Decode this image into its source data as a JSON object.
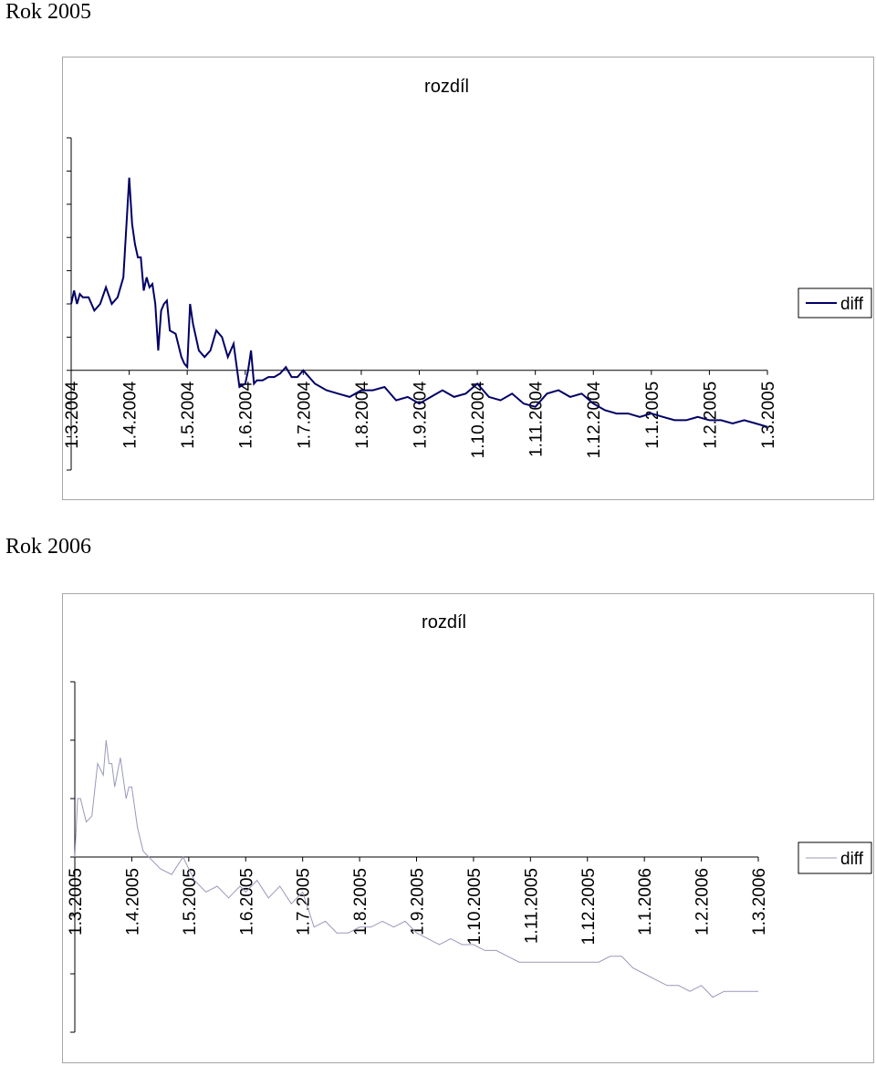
{
  "sections": [
    {
      "heading": "Rok 2005"
    },
    {
      "heading": "Rok 2006"
    }
  ],
  "chart_data": [
    {
      "type": "line",
      "title": "rozdíl",
      "xlabel": "",
      "ylabel": "",
      "ylim": [
        -15,
        35
      ],
      "yticks": [
        -15,
        -10,
        -5,
        0,
        5,
        10,
        15,
        20,
        25,
        30,
        35
      ],
      "categories": [
        "1.3.2004",
        "1.4.2004",
        "1.5.2004",
        "1.6.2004",
        "1.7.2004",
        "1.8.2004",
        "1.9.2004",
        "1.10.2004",
        "1.11.2004",
        "1.12.2004",
        "1.1.2005",
        "1.2.2005",
        "1.3.2005"
      ],
      "legend": {
        "position": "right"
      },
      "color": "#000066",
      "series": [
        {
          "name": "diff",
          "x": [
            0,
            0.05,
            0.1,
            0.15,
            0.2,
            0.3,
            0.4,
            0.5,
            0.6,
            0.7,
            0.8,
            0.9,
            1.0,
            1.05,
            1.1,
            1.15,
            1.2,
            1.25,
            1.3,
            1.35,
            1.4,
            1.45,
            1.5,
            1.55,
            1.6,
            1.65,
            1.7,
            1.8,
            1.9,
            1.95,
            2.0,
            2.05,
            2.1,
            2.15,
            2.2,
            2.3,
            2.4,
            2.5,
            2.6,
            2.7,
            2.8,
            2.9,
            3.0,
            3.05,
            3.1,
            3.15,
            3.2,
            3.3,
            3.4,
            3.5,
            3.6,
            3.7,
            3.8,
            3.9,
            4.0,
            4.2,
            4.4,
            4.6,
            4.8,
            5.0,
            5.2,
            5.4,
            5.6,
            5.8,
            6.0,
            6.2,
            6.4,
            6.6,
            6.8,
            7.0,
            7.2,
            7.4,
            7.6,
            7.8,
            8.0,
            8.2,
            8.4,
            8.6,
            8.8,
            9.0,
            9.2,
            9.4,
            9.6,
            9.8,
            10.0,
            10.2,
            10.4,
            10.6,
            10.8,
            11.0,
            11.2,
            11.4,
            11.6,
            11.8,
            12.0
          ],
          "y": [
            10,
            12,
            10,
            11.5,
            11,
            11,
            9,
            10,
            12.5,
            10,
            11,
            14,
            29,
            22,
            19,
            17,
            17,
            12,
            14,
            12.5,
            13,
            10,
            3,
            9,
            10,
            10.5,
            6,
            5.5,
            2,
            1,
            0.5,
            10,
            7,
            5,
            3,
            2,
            3,
            6,
            5,
            2,
            4,
            -2.5,
            -2,
            0,
            3,
            -2,
            -1.5,
            -1.5,
            -1,
            -1,
            -0.5,
            0.5,
            -1,
            -1,
            0,
            -2,
            -3,
            -3.5,
            -4,
            -3,
            -3,
            -2.5,
            -4.5,
            -4,
            -5,
            -4,
            -3,
            -4,
            -3.5,
            -2,
            -4,
            -4.5,
            -3.5,
            -5,
            -5.5,
            -3.5,
            -3,
            -4,
            -3.5,
            -5,
            -6,
            -6.5,
            -6.5,
            -7,
            -6.5,
            -7,
            -7.5,
            -7.5,
            -7,
            -7.5,
            -7.5,
            -8,
            -7.5,
            -8,
            -8.5
          ]
        }
      ]
    },
    {
      "type": "line",
      "title": "rozdíl",
      "xlabel": "",
      "ylabel": "",
      "ylim": [
        -15,
        15
      ],
      "yticks": [
        -15,
        -10,
        -5,
        0,
        5,
        10,
        15
      ],
      "categories": [
        "1.3.2005",
        "1.4.2005",
        "1.5.2005",
        "1.6.2005",
        "1.7.2005",
        "1.8.2005",
        "1.9.2005",
        "1.10.2005",
        "1.11.2005",
        "1.12.2005",
        "1.1.2006",
        "1.2.2006",
        "1.3.2006"
      ],
      "legend": {
        "position": "right"
      },
      "color": "#9999bb",
      "series": [
        {
          "name": "diff",
          "x": [
            0,
            0.05,
            0.1,
            0.2,
            0.3,
            0.4,
            0.5,
            0.55,
            0.6,
            0.65,
            0.7,
            0.8,
            0.9,
            0.95,
            1.0,
            1.1,
            1.2,
            1.3,
            1.5,
            1.7,
            1.9,
            2.0,
            2.1,
            2.3,
            2.5,
            2.7,
            2.9,
            3.0,
            3.2,
            3.4,
            3.6,
            3.8,
            4.0,
            4.2,
            4.4,
            4.6,
            4.8,
            5.0,
            5.2,
            5.4,
            5.6,
            5.8,
            6.0,
            6.2,
            6.4,
            6.6,
            6.8,
            7.0,
            7.2,
            7.4,
            7.6,
            7.8,
            8.0,
            8.2,
            8.4,
            8.6,
            8.8,
            9.0,
            9.2,
            9.4,
            9.6,
            9.8,
            10.0,
            10.2,
            10.4,
            10.6,
            10.8,
            11.0,
            11.2,
            11.4,
            11.6,
            11.8,
            12.0
          ],
          "y": [
            0,
            5,
            5,
            3,
            3.5,
            8,
            7,
            10,
            8,
            8,
            6,
            8.5,
            5,
            6,
            6,
            2.5,
            0.5,
            0,
            -1,
            -1.5,
            0,
            -1,
            -2,
            -3,
            -2.5,
            -3.5,
            -2.5,
            -3,
            -2,
            -3.5,
            -2.5,
            -4,
            -3,
            -6,
            -5.5,
            -6.5,
            -6.5,
            -6,
            -6,
            -5.5,
            -6,
            -5.5,
            -6.5,
            -7,
            -7.5,
            -7,
            -7.5,
            -7.5,
            -8,
            -8,
            -8.5,
            -9,
            -9,
            -9,
            -9,
            -9,
            -9,
            -9,
            -9,
            -8.5,
            -8.5,
            -9.5,
            -10,
            -10.5,
            -11,
            -11,
            -11.5,
            -11,
            -12,
            -11.5,
            -11.5,
            -11.5,
            -11.5
          ]
        }
      ]
    }
  ]
}
